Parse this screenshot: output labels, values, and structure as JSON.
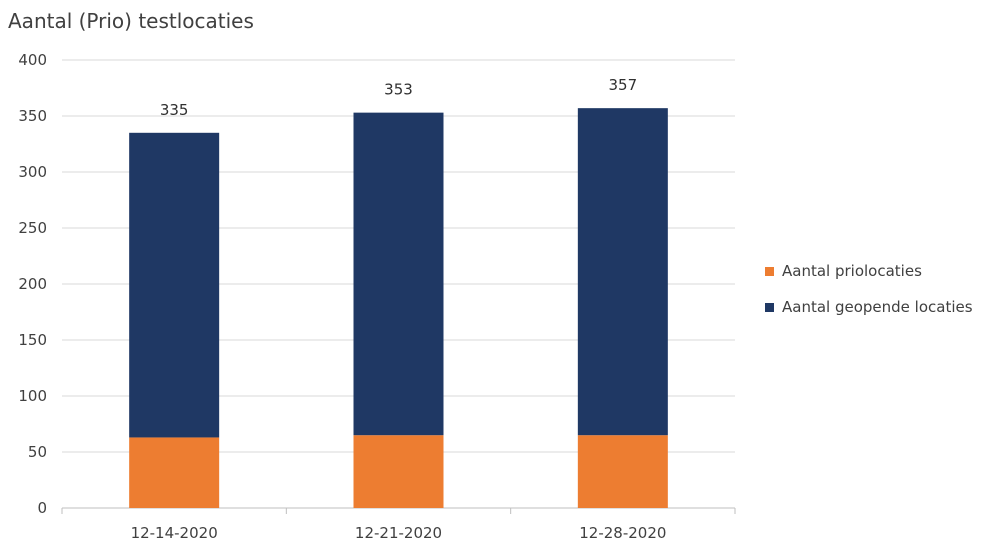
{
  "chart_data": {
    "type": "bar",
    "stacked": true,
    "title": "Aantal (Prio) testlocaties",
    "categories": [
      "12-14-2020",
      "12-21-2020",
      "12-28-2020"
    ],
    "series": [
      {
        "name": "Aantal priolocaties",
        "values": [
          63,
          65,
          65
        ],
        "color": "#ED7D31"
      },
      {
        "name": "Aantal geopende locaties",
        "values": [
          272,
          288,
          292
        ],
        "color": "#1F3864"
      }
    ],
    "totals": [
      "335",
      "353",
      "357"
    ],
    "yticks": [
      "0",
      "50",
      "100",
      "150",
      "200",
      "250",
      "300",
      "350",
      "400"
    ],
    "ylim": [
      0,
      400
    ],
    "grid": true,
    "legend_position": "right"
  }
}
